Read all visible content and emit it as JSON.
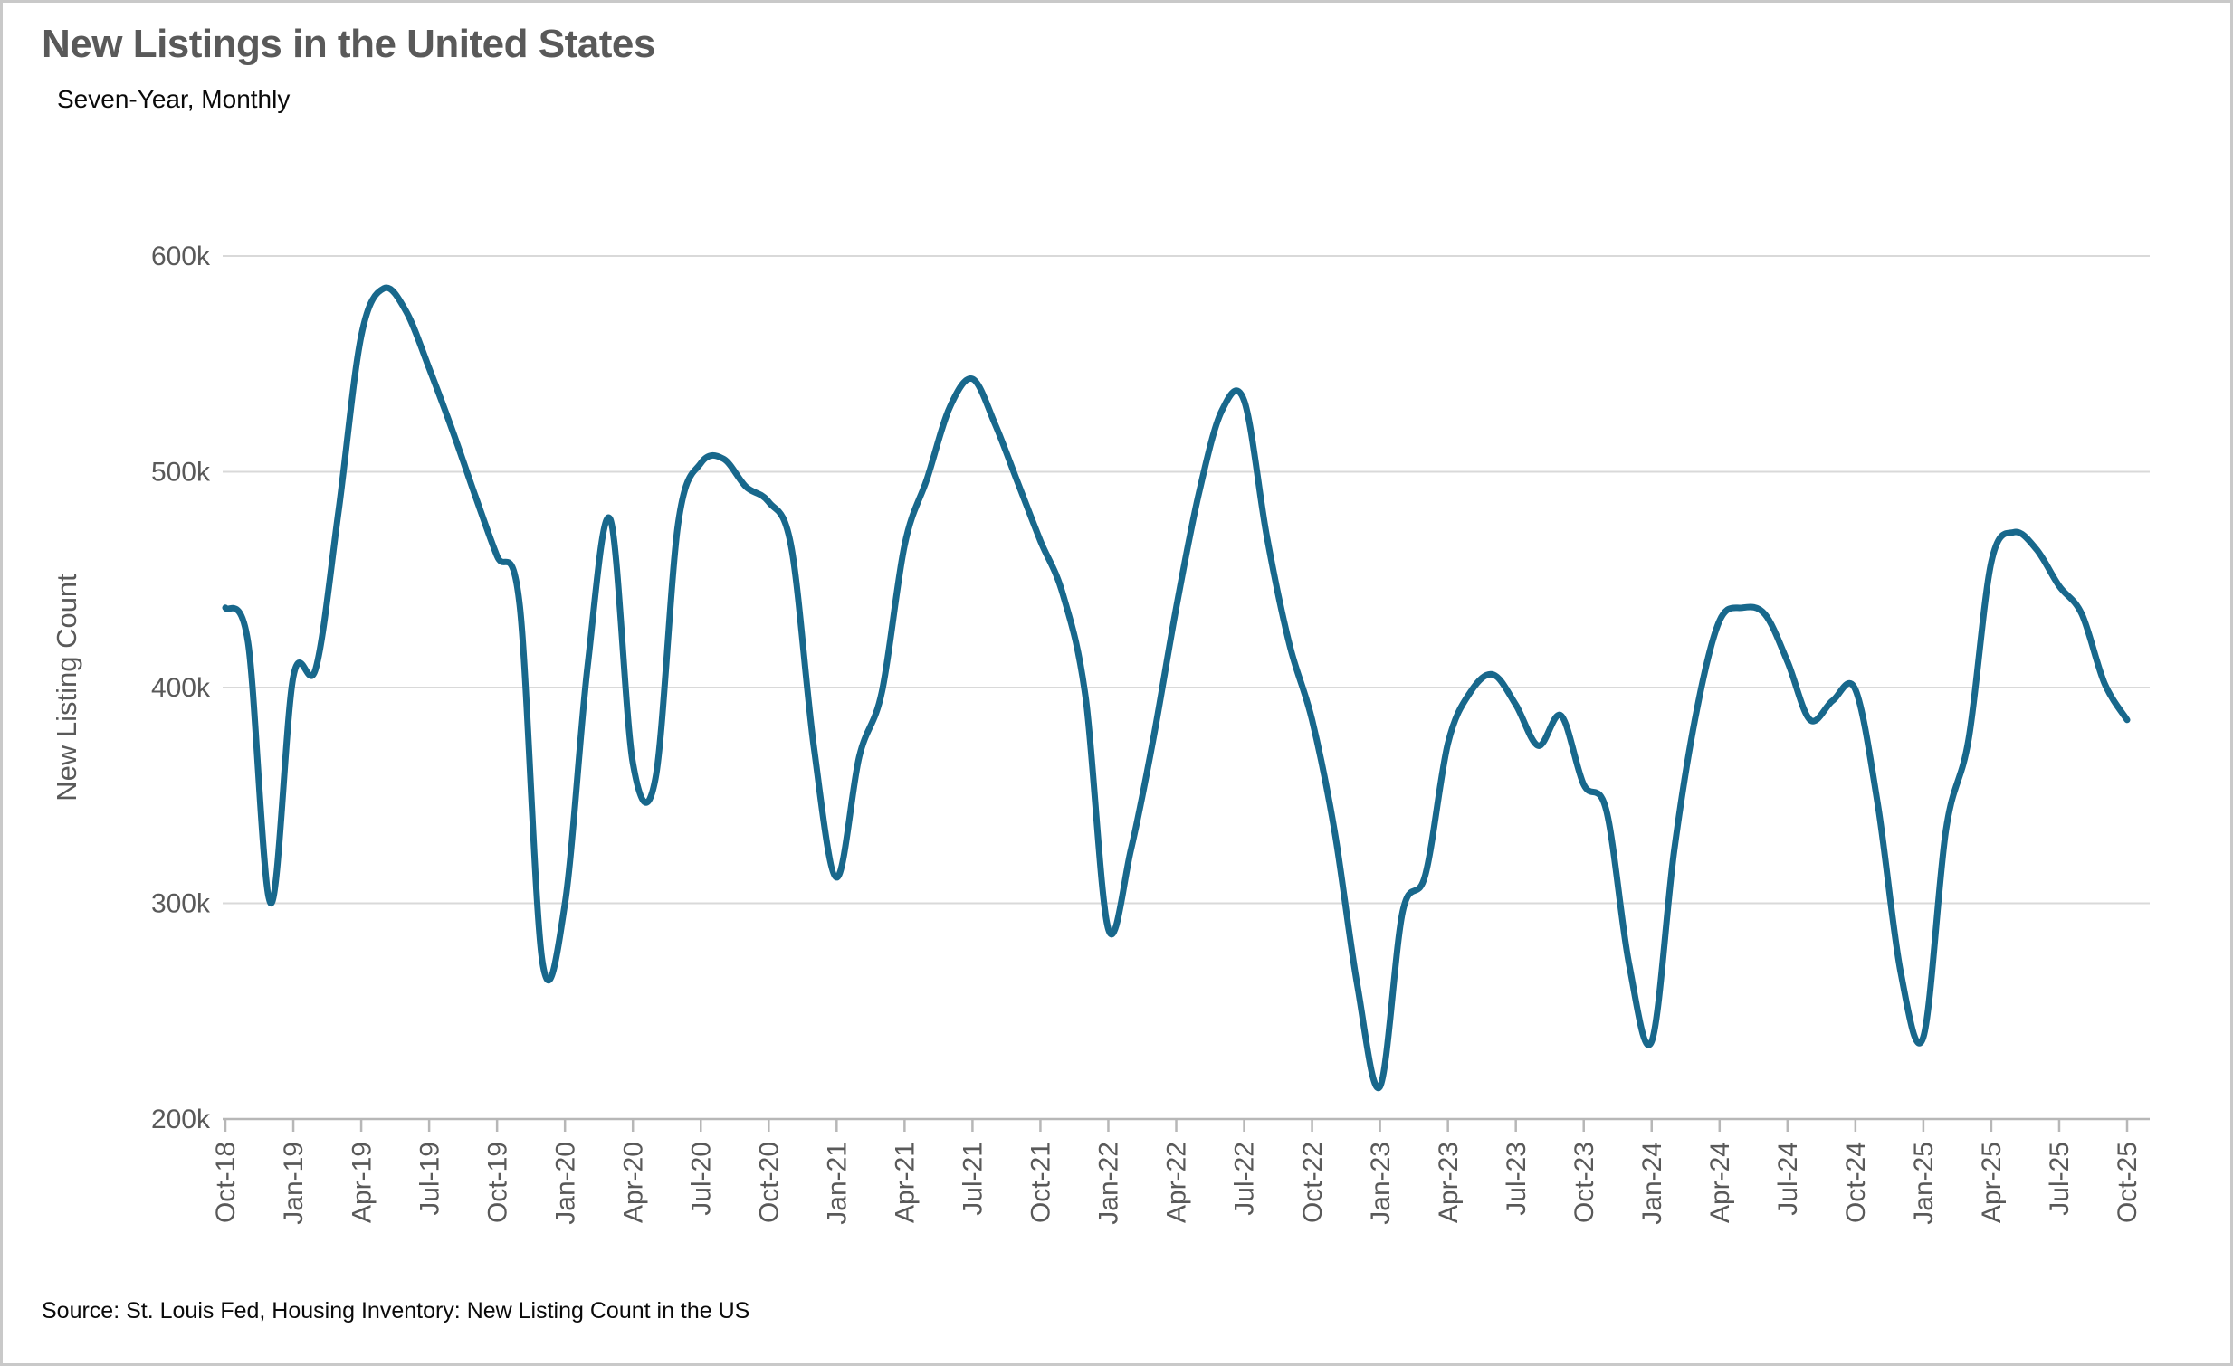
{
  "header": {
    "title": "New Listings in the United States",
    "subtitle": "Seven-Year, Monthly"
  },
  "footer": {
    "source": "Source: St. Louis Fed, Housing Inventory: New Listing Count in the US"
  },
  "chart_data": {
    "type": "line",
    "title": "New Listings in the United States",
    "subtitle": "Seven-Year, Monthly",
    "xlabel": "",
    "ylabel": "New Listing Count",
    "units": "thousands of listings",
    "ylim_thousands": [
      200,
      600
    ],
    "ytick_labels": [
      "200k",
      "300k",
      "400k",
      "500k",
      "600k"
    ],
    "ytick_values_thousands": [
      200,
      300,
      400,
      500,
      600
    ],
    "xtick_labels": [
      "Oct-18",
      "Jan-19",
      "Apr-19",
      "Jul-19",
      "Oct-19",
      "Jan-20",
      "Apr-20",
      "Jul-20",
      "Oct-20",
      "Jan-21",
      "Apr-21",
      "Jul-21",
      "Oct-21",
      "Jan-22",
      "Apr-22",
      "Jul-22",
      "Oct-22",
      "Jan-23",
      "Apr-23",
      "Jul-23",
      "Oct-23",
      "Jan-24",
      "Apr-24",
      "Jul-24",
      "Oct-24",
      "Jan-25",
      "Apr-25",
      "Jul-25",
      "Oct-25"
    ],
    "grid": "horizontal",
    "legend": "none",
    "series": [
      {
        "name": "New Listing Count",
        "x": [
          "Oct-18",
          "Nov-18",
          "Dec-18",
          "Jan-19",
          "Feb-19",
          "Mar-19",
          "Apr-19",
          "May-19",
          "Jun-19",
          "Jul-19",
          "Aug-19",
          "Sep-19",
          "Oct-19",
          "Nov-19",
          "Dec-19",
          "Jan-20",
          "Feb-20",
          "Mar-20",
          "Apr-20",
          "May-20",
          "Jun-20",
          "Jul-20",
          "Aug-20",
          "Sep-20",
          "Oct-20",
          "Nov-20",
          "Dec-20",
          "Jan-21",
          "Feb-21",
          "Mar-21",
          "Apr-21",
          "May-21",
          "Jun-21",
          "Jul-21",
          "Aug-21",
          "Sep-21",
          "Oct-21",
          "Nov-21",
          "Dec-21",
          "Jan-22",
          "Feb-22",
          "Mar-22",
          "Apr-22",
          "May-22",
          "Jun-22",
          "Jul-22",
          "Aug-22",
          "Sep-22",
          "Oct-22",
          "Nov-22",
          "Dec-22",
          "Jan-23",
          "Feb-23",
          "Mar-23",
          "Apr-23",
          "May-23",
          "Jun-23",
          "Jul-23",
          "Aug-23",
          "Sep-23",
          "Oct-23",
          "Nov-23",
          "Dec-23",
          "Jan-24",
          "Feb-24",
          "Mar-24",
          "Apr-24",
          "May-24",
          "Jun-24",
          "Jul-24",
          "Aug-24",
          "Sep-24",
          "Oct-24",
          "Nov-24",
          "Dec-24",
          "Jan-25",
          "Feb-25",
          "Mar-25",
          "Apr-25",
          "May-25",
          "Jun-25",
          "Jul-25",
          "Aug-25",
          "Sep-25",
          "Oct-25"
        ],
        "values_thousands": [
          437,
          421,
          300,
          405,
          409,
          482,
          563,
          585,
          574,
          548,
          520,
          490,
          461,
          438,
          273,
          300,
          410,
          478,
          365,
          358,
          476,
          504,
          506,
          493,
          486,
          465,
          372,
          312,
          368,
          398,
          466,
          497,
          530,
          543,
          522,
          495,
          468,
          443,
          395,
          288,
          325,
          377,
          437,
          490,
          528,
          533,
          470,
          420,
          385,
          333,
          262,
          215,
          296,
          313,
          374,
          398,
          406,
          392,
          373,
          387,
          355,
          343,
          272,
          236,
          325,
          390,
          431,
          437,
          434,
          412,
          385,
          394,
          399,
          345,
          268,
          238,
          334,
          376,
          458,
          472,
          464,
          447,
          434,
          402,
          385
        ]
      }
    ]
  },
  "style": {
    "line_color": "#18688c",
    "grid_color": "#d9d9d9",
    "axis_color": "#b7b7b7",
    "tick_label_color": "#595959",
    "title_color": "#595959",
    "text_color": "#0a0a0a",
    "background": "#ffffff",
    "border_color": "#c9c9c9"
  }
}
